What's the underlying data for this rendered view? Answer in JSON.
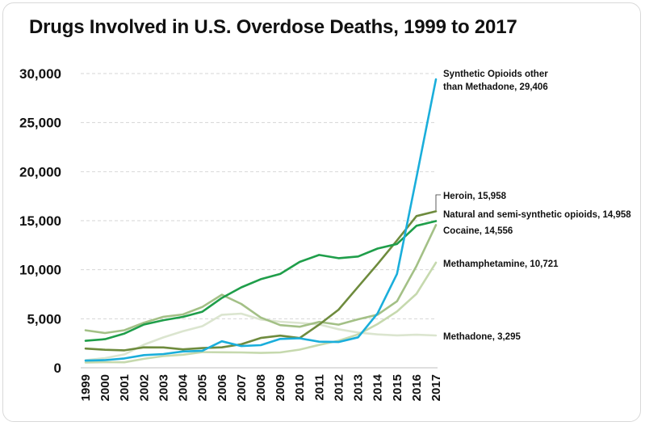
{
  "chart_data": {
    "type": "line",
    "title": "Drugs Involved in U.S. Overdose Deaths, 1999 to 2017",
    "xlabel": "",
    "ylabel": "",
    "x": [
      "1999",
      "2000",
      "2001",
      "2002",
      "2003",
      "2004",
      "2005",
      "2006",
      "2007",
      "2008",
      "2009",
      "2010",
      "2011",
      "2012",
      "2013",
      "2014",
      "2015",
      "2016",
      "2017"
    ],
    "ylim": [
      0,
      30000
    ],
    "yticks": [
      0,
      5000,
      10000,
      15000,
      20000,
      25000,
      30000
    ],
    "ytick_labels": [
      "0",
      "5,000",
      "10,000",
      "15,000",
      "20,000",
      "25,000",
      "30,000"
    ],
    "grid": "horizontal dashed",
    "legend": "none (direct labels at right end of lines)",
    "series": [
      {
        "key": "synthetic",
        "label_lines": [
          "Synthetic Opioids other",
          "than Methadone, 29,406"
        ],
        "color": "#1aaedb",
        "values": [
          730,
          782,
          957,
          1295,
          1400,
          1664,
          1742,
          2707,
          2213,
          2306,
          2946,
          3007,
          2666,
          2628,
          3105,
          5544,
          9580,
          19413,
          29406
        ]
      },
      {
        "key": "heroin",
        "label_lines": [
          "Heroin, 15,958"
        ],
        "color": "#6e8b3d",
        "values": [
          1960,
          1842,
          1779,
          2089,
          2080,
          1878,
          2009,
          2088,
          2399,
          3041,
          3278,
          3036,
          4397,
          5925,
          8257,
          10574,
          12989,
          15469,
          15958
        ]
      },
      {
        "key": "natural",
        "label_lines": [
          "Natural and semi-synthetic opioids, 14,958"
        ],
        "color": "#1f9e4a",
        "values": [
          2749,
          2917,
          3491,
          4411,
          4853,
          5194,
          5722,
          7123,
          8203,
          9032,
          9568,
          10796,
          11503,
          11172,
          11349,
          12157,
          12623,
          14478,
          14958
        ]
      },
      {
        "key": "cocaine",
        "label_lines": [
          "Cocaine, 14,556"
        ],
        "color": "#a3c086",
        "values": [
          3822,
          3544,
          3833,
          4599,
          5200,
          5443,
          6208,
          7448,
          6512,
          5129,
          4350,
          4183,
          4681,
          4404,
          4944,
          5415,
          6784,
          10375,
          14556
        ]
      },
      {
        "key": "meth",
        "label_lines": [
          "Methamphetamine, 10,721"
        ],
        "color": "#c6d9ae",
        "values": [
          547,
          578,
          563,
          913,
          1193,
          1338,
          1603,
          1585,
          1566,
          1513,
          1568,
          1854,
          2331,
          2762,
          3400,
          4461,
          5741,
          7542,
          10721
        ]
      },
      {
        "key": "methadone",
        "label_lines": [
          "Methadone, 3,295"
        ],
        "color": "#dbe5cf",
        "values": [
          784,
          988,
          1370,
          2360,
          3103,
          3735,
          4244,
          5406,
          5518,
          4924,
          4696,
          4577,
          4418,
          3932,
          3591,
          3400,
          3301,
          3373,
          3295
        ]
      }
    ]
  }
}
